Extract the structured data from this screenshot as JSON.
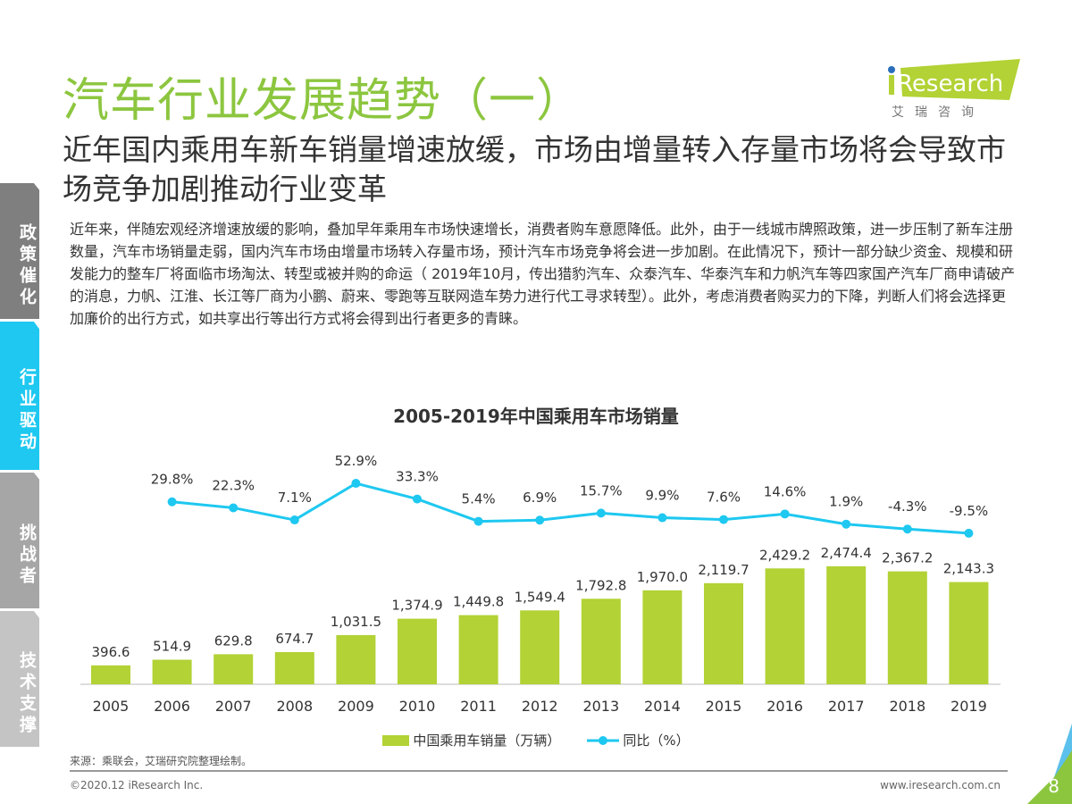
{
  "header": {
    "title": "汽车行业发展趋势（一）",
    "subtitle": "近年国内乘用车新车销量增速放缓，市场由增量转入存量市场将会导致市场竞争加剧推动行业变革",
    "logo_text": "iResearch",
    "logo_cn": "艾 瑞 咨 询"
  },
  "body": "近年来，伴随宏观经济增速放缓的影响，叠加早年乘用车市场快速增长，消费者购车意愿降低。此外，由于一线城市牌照政策，进一步压制了新车注册数量，汽车市场销量走弱，国内汽车市场由增量市场转入存量市场，预计汽车市场竞争将会进一步加剧。在此情况下，预计一部分缺少资金、规模和研发能力的整车厂将面临市场淘汰、转型或被并购的命运（ 2019年10月，传出猎豹汽车、众泰汽车、华泰汽车和力帆汽车等四家国产汽车厂商申请破产的消息，力帆、江淮、长江等厂商为小鹏、蔚来、零跑等互联网造车势力进行代工寻求转型）。此外，考虑消费者购买力的下降，判断人们将会选择更加廉价的出行方式，如共享出行等出行方式将会得到出行者更多的青睐。",
  "sidebar": [
    {
      "label": "政策催化",
      "color": "#7f7f7f"
    },
    {
      "label": "行业驱动",
      "color": "#1ec8f0",
      "active": true
    },
    {
      "label": "挑战者",
      "color": "#a6a6a6"
    },
    {
      "label": "技术支撑",
      "color": "#c4c4c4"
    }
  ],
  "chart_data": {
    "type": "bar+line",
    "title": "2005-2019年中国乘用车市场销量",
    "categories": [
      "2005",
      "2006",
      "2007",
      "2008",
      "2009",
      "2010",
      "2011",
      "2012",
      "2013",
      "2014",
      "2015",
      "2016",
      "2017",
      "2018",
      "2019"
    ],
    "series": [
      {
        "name": "中国乘用车销量（万辆）",
        "type": "bar",
        "color": "#b2d235",
        "values": [
          396.6,
          514.9,
          629.8,
          674.7,
          1031.5,
          1374.9,
          1449.8,
          1549.4,
          1792.8,
          1970.0,
          2119.7,
          2429.2,
          2474.4,
          2367.2,
          2143.3
        ],
        "labels": [
          "396.6",
          "514.9",
          "629.8",
          "674.7",
          "1,031.5",
          "1,374.9",
          "1,449.8",
          "1,549.4",
          "1,792.8",
          "1,970.0",
          "2,119.7",
          "2,429.2",
          "2,474.4",
          "2,367.2",
          "2,143.3"
        ]
      },
      {
        "name": "同比（%）",
        "type": "line",
        "color": "#1ec8f0",
        "values": [
          null,
          29.8,
          22.3,
          7.1,
          52.9,
          33.3,
          5.4,
          6.9,
          15.7,
          9.9,
          7.6,
          14.6,
          1.9,
          -4.3,
          -9.5
        ],
        "labels": [
          "",
          "29.8%",
          "22.3%",
          "7.1%",
          "52.9%",
          "33.3%",
          "5.4%",
          "6.9%",
          "15.7%",
          "9.9%",
          "7.6%",
          "14.6%",
          "1.9%",
          "-4.3%",
          "-9.5%"
        ]
      }
    ]
  },
  "footer": {
    "source": "来源：乘联会，艾瑞研究院整理绘制。",
    "copyright": "©2020.12 iResearch Inc.",
    "url": "www.iresearch.com.cn",
    "page": "8"
  }
}
